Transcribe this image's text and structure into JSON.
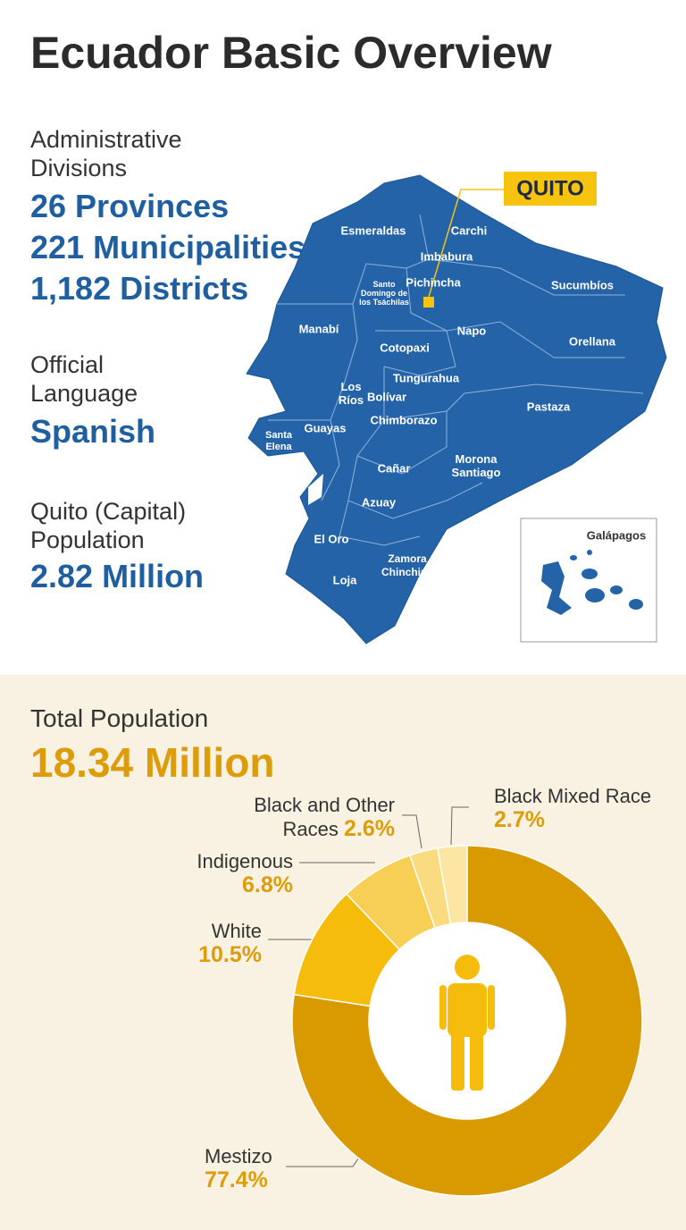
{
  "title": "Ecuador Basic Overview",
  "facts": [
    {
      "label": "Administrative Divisions",
      "values": [
        "26 Provinces",
        "221 Municipalities",
        "1,182 Districts"
      ]
    },
    {
      "label": "Official Language",
      "values": [
        "Spanish"
      ]
    },
    {
      "label": "Quito (Capital) Population",
      "values": [
        "2.82 Million"
      ]
    }
  ],
  "map": {
    "capital": "QUITO",
    "inset": "Galápagos",
    "regions": [
      "Esmeraldas",
      "Carchi",
      "Imbabura",
      "Pichincha",
      "Santo Domingo de los Tsáchilas",
      "Sucumbíos",
      "Manabí",
      "Napo",
      "Orellana",
      "Cotopaxi",
      "Tungurahua",
      "Los Ríos",
      "Bolívar",
      "Pastaza",
      "Guayas",
      "Santa Elena",
      "Chimborazo",
      "Cañar",
      "Morona Santiago",
      "Azuay",
      "El Oro",
      "Zamora Chinchipe",
      "Loja"
    ]
  },
  "chart_data": {
    "type": "donut",
    "title": "Total Population",
    "subtitle": "18.34 Million",
    "categories": [
      "Mestizo",
      "White",
      "Indigenous",
      "Black and Other Races",
      "Black Mixed Race"
    ],
    "values": [
      77.4,
      10.5,
      6.8,
      2.6,
      2.7
    ],
    "value_labels": [
      "77.4%",
      "10.5%",
      "6.8%",
      "2.6%",
      "2.7%"
    ],
    "colors": [
      "#d99a00",
      "#f5bc0c",
      "#f8cf55",
      "#fadb7f",
      "#fde6a3"
    ]
  }
}
